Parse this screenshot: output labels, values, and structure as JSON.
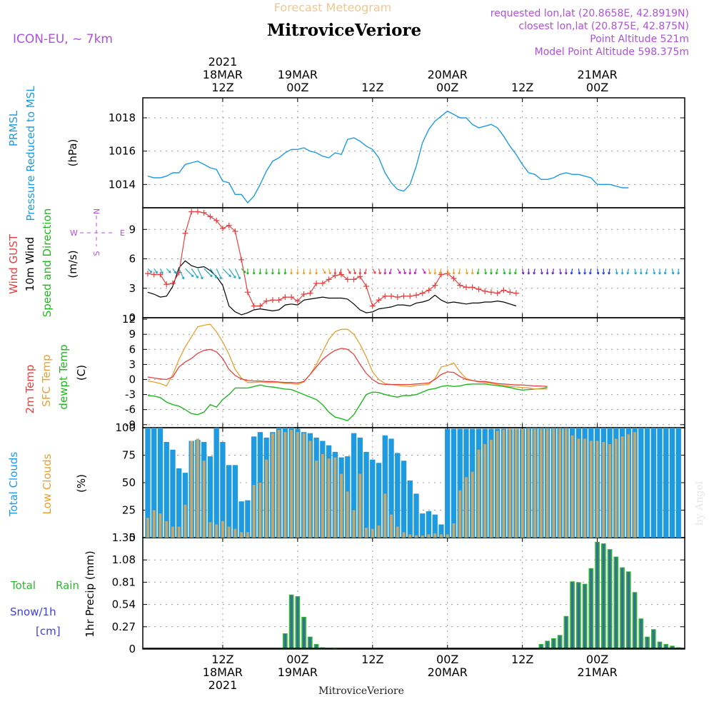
{
  "header": {
    "forecast_title": "Forecast Meteogram",
    "station": "MitroviceVeriore",
    "model": "ICON-EU, ~ 7km",
    "requested": "requested lon,lat (20.8658E, 42.8919N)",
    "closest": "closest lon,lat (20.875E, 42.875N)",
    "point_alt": "Point Altitude 521m",
    "model_alt": "Model Point Altitude 598.375m",
    "watermark": "by Angel",
    "footer_station": "MitroviceVeriore"
  },
  "colors": {
    "pressure": "#1E9BE0",
    "gust": "#E84040",
    "wind": "#000000",
    "windlabel": "#1EB81E",
    "t2m": "#E84040",
    "sfc": "#E8A030",
    "dew": "#1EB81E",
    "cloud_total": "#1E9BE0",
    "cloud_low": "#C8A86A",
    "rain": "#2CB82C",
    "snow": "#4040E0",
    "model": "#B050E0",
    "title2": "#F0C890"
  },
  "time_axis": {
    "top_year": "2021",
    "top_labels": [
      {
        "h": 24,
        "l1": "18MAR",
        "l2": "12Z"
      },
      {
        "h": 36,
        "l1": "19MAR",
        "l2": "00Z"
      },
      {
        "h": 48,
        "l1": "",
        "l2": "12Z"
      },
      {
        "h": 60,
        "l1": "20MAR",
        "l2": "00Z"
      },
      {
        "h": 72,
        "l1": "",
        "l2": "12Z"
      },
      {
        "h": 84,
        "l1": "21MAR",
        "l2": "00Z"
      }
    ],
    "bottom_labels": [
      {
        "h": 24,
        "l1": "12Z",
        "l2": "18MAR",
        "l3": "2021"
      },
      {
        "h": 36,
        "l1": "00Z",
        "l2": "19MAR",
        "l3": ""
      },
      {
        "h": 48,
        "l1": "12Z",
        "l2": "",
        "l3": ""
      },
      {
        "h": 60,
        "l1": "00Z",
        "l2": "20MAR",
        "l3": ""
      },
      {
        "h": 72,
        "l1": "12Z",
        "l2": "",
        "l3": ""
      },
      {
        "h": 84,
        "l1": "00Z",
        "l2": "21MAR",
        "l3": ""
      }
    ]
  },
  "panel_labels": {
    "pressure": [
      "PRMSL",
      "Pressure Reduced to MSL",
      "(hPa)"
    ],
    "wind": [
      "Wind GUST",
      "10m Wind",
      "Speed and Direction",
      "(m/s)"
    ],
    "compass": [
      "N",
      "S",
      "W",
      "E"
    ],
    "temp": [
      "2m Temp",
      "SFC Temp",
      "dewpt Temp",
      "(C)"
    ],
    "clouds": [
      "Total Clouds",
      "Low Clouds",
      "(%)"
    ],
    "precip": [
      "Total",
      "Rain",
      "Snow/1h",
      "[cm]",
      "1hr Precip (mm)"
    ]
  },
  "chart_data": [
    {
      "type": "line",
      "title": "PRMSL Pressure Reduced to MSL",
      "ylabel": "(hPa)",
      "ylim": [
        1012.6,
        1019.2
      ],
      "yticks": [
        1014,
        1016,
        1018
      ],
      "x_start_hour": 12,
      "x_step_hours": 1,
      "series": [
        {
          "name": "PRMSL",
          "values": [
            1014.5,
            1014.4,
            1014.4,
            1014.5,
            1014.7,
            1014.7,
            1015.2,
            1015.3,
            1015.4,
            1015.2,
            1015.0,
            1014.9,
            1014.2,
            1014.1,
            1013.4,
            1013.4,
            1012.9,
            1013.3,
            1014.0,
            1014.8,
            1015.4,
            1015.6,
            1015.9,
            1016.1,
            1016.1,
            1016.2,
            1016.0,
            1015.9,
            1015.7,
            1015.6,
            1015.9,
            1015.8,
            1016.7,
            1016.8,
            1016.6,
            1016.3,
            1016.1,
            1015.6,
            1014.7,
            1014.1,
            1013.7,
            1013.6,
            1014.0,
            1015.1,
            1016.5,
            1017.3,
            1017.8,
            1018.1,
            1018.4,
            1018.2,
            1018.0,
            1018.0,
            1017.6,
            1017.4,
            1017.5,
            1017.6,
            1017.4,
            1016.9,
            1016.3,
            1015.8,
            1015.2,
            1014.7,
            1014.6,
            1014.3,
            1014.3,
            1014.4,
            1014.6,
            1014.7,
            1014.6,
            1014.6,
            1014.5,
            1014.4,
            1014.0,
            1014.0,
            1014.0,
            1013.9,
            1013.8,
            1013.8
          ]
        }
      ]
    },
    {
      "type": "line",
      "title": "Wind GUST / 10m Wind Speed and Direction",
      "ylabel": "(m/s)",
      "ylim": [
        0,
        11.2
      ],
      "yticks": [
        0,
        3,
        6,
        9
      ],
      "x_start_hour": 12,
      "x_step_hours": 1,
      "series": [
        {
          "name": "Wind GUST",
          "values": [
            4.5,
            4.4,
            4.4,
            3.4,
            3.5,
            4.6,
            8.6,
            10.8,
            10.8,
            10.7,
            10.3,
            9.9,
            9.1,
            9.4,
            8.8,
            5.9,
            2.6,
            1.2,
            1.2,
            1.7,
            1.8,
            1.8,
            2.1,
            2.1,
            1.7,
            2.4,
            2.5,
            3.5,
            3.5,
            3.9,
            4.3,
            4.4,
            3.9,
            3.9,
            4.2,
            3.2,
            1.2,
            1.8,
            2.2,
            2.2,
            2.1,
            2.2,
            2.2,
            2.3,
            2.5,
            2.8,
            3.3,
            4.4,
            4.5,
            4.0,
            3.3,
            3.1,
            3.1,
            2.9,
            2.7,
            2.6,
            2.5,
            2.8,
            2.6,
            2.5
          ]
        },
        {
          "name": "10m Wind",
          "values": [
            2.6,
            2.4,
            2.1,
            2.2,
            3.2,
            5.1,
            5.8,
            5.3,
            5.1,
            5.2,
            4.8,
            4.2,
            3.3,
            1.2,
            0.6,
            0.3,
            0.5,
            0.8,
            0.9,
            0.8,
            0.7,
            0.8,
            1.3,
            1.4,
            1.3,
            1.8,
            1.9,
            2.0,
            2.1,
            2.0,
            2.0,
            2.0,
            1.9,
            1.4,
            0.8,
            0.5,
            0.6,
            0.9,
            1.0,
            1.1,
            1.3,
            1.3,
            1.2,
            1.5,
            1.6,
            1.8,
            2.3,
            1.8,
            1.5,
            1.6,
            1.5,
            1.4,
            1.5,
            1.5,
            1.6,
            1.6,
            1.7,
            1.6,
            1.4,
            1.2
          ]
        }
      ]
    },
    {
      "type": "line",
      "title": "2m Temp / SFC Temp / dewpt Temp",
      "ylabel": "(C)",
      "ylim": [
        -9.6,
        12.3
      ],
      "yticks": [
        -9,
        -6,
        -3,
        0,
        3,
        6,
        9,
        12
      ],
      "x_start_hour": 12,
      "x_step_hours": 1,
      "series": [
        {
          "name": "2m Temp",
          "values": [
            0.5,
            0.3,
            0.1,
            0.0,
            0.5,
            2.5,
            3.5,
            4.2,
            5.2,
            5.8,
            6.0,
            5.5,
            4.2,
            2.0,
            0.8,
            0.1,
            -0.2,
            -0.3,
            -0.3,
            -0.4,
            -0.4,
            -0.5,
            -0.6,
            -0.6,
            -0.7,
            -0.4,
            1.0,
            2.5,
            4.0,
            5.0,
            5.8,
            6.2,
            6.0,
            5.0,
            3.0,
            1.2,
            0.0,
            -0.8,
            -1.0,
            -1.0,
            -1.0,
            -1.0,
            -1.0,
            -0.9,
            -0.8,
            -0.7,
            0.0,
            1.0,
            1.5,
            1.4,
            0.6,
            0.0,
            -0.2,
            -0.4,
            -0.4,
            -0.6,
            -0.8,
            -0.9,
            -1.0,
            -1.1,
            -1.1,
            -1.2,
            -1.3,
            -1.3,
            -1.4
          ]
        },
        {
          "name": "SFC Temp",
          "values": [
            -0.3,
            -0.5,
            -0.8,
            -1.3,
            1.0,
            4.0,
            6.5,
            8.5,
            10.5,
            10.8,
            11.0,
            9.5,
            7.5,
            5.0,
            2.0,
            0.3,
            -0.6,
            -0.6,
            -0.5,
            -0.6,
            -0.6,
            -0.6,
            -0.8,
            -0.8,
            -1.0,
            -0.5,
            1.0,
            3.0,
            5.5,
            8.0,
            9.5,
            10.0,
            10.0,
            9.0,
            7.0,
            4.5,
            1.5,
            0.0,
            -0.8,
            -1.0,
            -1.2,
            -1.3,
            -1.4,
            -1.2,
            -1.1,
            -1.0,
            0.2,
            2.5,
            2.8,
            3.3,
            1.5,
            0.2,
            -0.2,
            -0.5,
            -0.6,
            -0.8,
            -1.0,
            -1.2,
            -1.4,
            -1.5,
            -1.6,
            -1.7,
            -1.9,
            -1.9,
            -1.9
          ]
        },
        {
          "name": "dewpt Temp",
          "values": [
            -3.2,
            -3.3,
            -3.6,
            -4.5,
            -5.0,
            -5.3,
            -6.0,
            -6.8,
            -7.0,
            -6.5,
            -5.0,
            -5.5,
            -4.0,
            -3.0,
            -1.7,
            -1.7,
            -1.7,
            -1.4,
            -1.1,
            -1.4,
            -1.5,
            -1.7,
            -1.9,
            -2.0,
            -2.5,
            -3.0,
            -3.5,
            -4.0,
            -5.0,
            -6.5,
            -7.5,
            -7.8,
            -8.2,
            -7.0,
            -5.0,
            -3.0,
            -2.5,
            -2.6,
            -3.0,
            -3.3,
            -3.5,
            -3.2,
            -3.2,
            -3.0,
            -2.5,
            -2.0,
            -1.8,
            -1.4,
            -1.2,
            -1.4,
            -1.3,
            -1.0,
            -0.9,
            -0.9,
            -0.9,
            -1.1,
            -1.2,
            -1.4,
            -1.6,
            -1.9,
            -2.1,
            -2.0,
            -1.9,
            -1.8,
            -1.6
          ]
        }
      ]
    },
    {
      "type": "bar",
      "title": "Total Clouds / Low Clouds",
      "ylabel": "(%)",
      "ylim": [
        0,
        100
      ],
      "yticks": [
        0,
        25,
        50,
        75,
        100
      ],
      "x_start_hour": 12,
      "x_step_hours": 1,
      "series": [
        {
          "name": "Total Clouds",
          "values": [
            100,
            100,
            100,
            87,
            80,
            63,
            59,
            88,
            89,
            87,
            74,
            100,
            87,
            66,
            66,
            33,
            34,
            92,
            96,
            91,
            96,
            100,
            100,
            100,
            99,
            96,
            95,
            91,
            88,
            84,
            78,
            73,
            74,
            95,
            91,
            78,
            71,
            68,
            93,
            90,
            77,
            70,
            52,
            40,
            22,
            24,
            21,
            12,
            99,
            99,
            99,
            99,
            99,
            99,
            99,
            99,
            99,
            99,
            99,
            99,
            99,
            100,
            100,
            100,
            100,
            100,
            100,
            100,
            100,
            100,
            100,
            100,
            100,
            100,
            100,
            100,
            100,
            100,
            100,
            100,
            100,
            100,
            100,
            100,
            100,
            100
          ]
        },
        {
          "name": "Low Clouds",
          "values": [
            18,
            25,
            22,
            15,
            10,
            10,
            30,
            88,
            90,
            70,
            14,
            12,
            15,
            10,
            8,
            5,
            5,
            48,
            50,
            71,
            95,
            98,
            96,
            98,
            96,
            95,
            88,
            70,
            76,
            72,
            73,
            58,
            42,
            25,
            58,
            9,
            8,
            11,
            40,
            21,
            10,
            5,
            3,
            2,
            2,
            3,
            4,
            3,
            3,
            13,
            43,
            55,
            60,
            80,
            85,
            89,
            97,
            98,
            99,
            99,
            99,
            99,
            99,
            99,
            99,
            99,
            99,
            99,
            93,
            90,
            90,
            88,
            88,
            87,
            85,
            90,
            92,
            94,
            96
          ]
        }
      ]
    },
    {
      "type": "bar",
      "title": "1hr Precip",
      "ylabel": "1hr Precip (mm)",
      "ylim": [
        0,
        1.35
      ],
      "yticks": [
        0,
        0.27,
        0.54,
        0.81,
        1.08,
        1.35
      ],
      "x_start_hour": 12,
      "x_step_hours": 1,
      "series": [
        {
          "name": "Total Rain",
          "values": [
            0,
            0,
            0,
            0,
            0,
            0,
            0,
            0,
            0,
            0,
            0,
            0,
            0,
            0,
            0,
            0,
            0,
            0,
            0,
            0,
            0,
            0,
            0.19,
            0.66,
            0.64,
            0.39,
            0.15,
            0.06,
            0.02,
            0,
            0.01,
            0,
            0,
            0,
            0,
            0,
            0,
            0,
            0,
            0,
            0,
            0,
            0,
            0,
            0,
            0,
            0,
            0,
            0,
            0,
            0,
            0,
            0,
            0,
            0,
            0,
            0,
            0,
            0,
            0,
            0,
            0,
            0,
            0.06,
            0.1,
            0.13,
            0.17,
            0.4,
            0.82,
            0.81,
            0.79,
            0.98,
            1.3,
            1.28,
            1.21,
            1.12,
            0.99,
            0.94,
            0.69,
            0.37,
            0.15,
            0.24,
            0.09,
            0.06,
            0.04,
            0.02
          ]
        }
      ]
    }
  ]
}
